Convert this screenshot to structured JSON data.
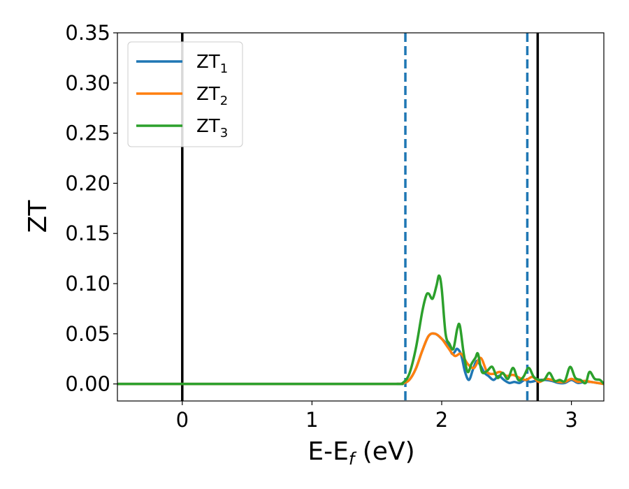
{
  "chart_data": {
    "type": "line",
    "xlabel_main": "E-E",
    "xlabel_sub": "f",
    "xlabel_unit": " (eV)",
    "ylabel": "ZT",
    "xlim": [
      -0.5,
      3.25
    ],
    "ylim": [
      -0.017,
      0.35
    ],
    "xticks": [
      0,
      1,
      2,
      3
    ],
    "yticks": [
      0.0,
      0.05,
      0.1,
      0.15,
      0.2,
      0.25,
      0.3,
      0.35
    ],
    "grid": false,
    "legend_position": "upper-left",
    "vlines_solid": [
      0.0,
      2.74
    ],
    "vlines_dashed": [
      1.72,
      2.66
    ],
    "series": [
      {
        "label_main": "ZT",
        "label_sub": "1",
        "color": "#1f77b4",
        "x": [
          -0.5,
          1.5,
          1.65,
          1.7,
          1.75,
          1.8,
          1.85,
          1.9,
          1.95,
          2.0,
          2.05,
          2.08,
          2.1,
          2.12,
          2.15,
          2.18,
          2.21,
          2.24,
          2.27,
          2.3,
          2.33,
          2.36,
          2.4,
          2.44,
          2.48,
          2.52,
          2.56,
          2.6,
          2.64,
          2.68,
          2.72,
          2.76,
          2.8,
          2.85,
          2.9,
          2.95,
          3.0,
          3.05,
          3.1,
          3.15,
          3.2,
          3.25
        ],
        "y": [
          0.0,
          0.0,
          0.0,
          0.0005,
          0.004,
          0.015,
          0.033,
          0.048,
          0.05,
          0.045,
          0.038,
          0.03,
          0.032,
          0.035,
          0.029,
          0.012,
          0.004,
          0.014,
          0.023,
          0.018,
          0.011,
          0.008,
          0.004,
          0.008,
          0.004,
          0.001,
          0.002,
          0.001,
          0.004,
          0.002,
          0.003,
          0.004,
          0.004,
          0.003,
          0.001,
          0.001,
          0.004,
          0.001,
          0.002,
          0.002,
          0.001,
          0.0
        ]
      },
      {
        "label_main": "ZT",
        "label_sub": "2",
        "color": "#ff7f0e",
        "x": [
          -0.5,
          1.5,
          1.65,
          1.7,
          1.75,
          1.8,
          1.85,
          1.9,
          1.95,
          2.0,
          2.05,
          2.1,
          2.15,
          2.2,
          2.25,
          2.3,
          2.35,
          2.4,
          2.45,
          2.5,
          2.55,
          2.6,
          2.65,
          2.7,
          2.75,
          2.8,
          2.85,
          2.9,
          2.95,
          3.0,
          3.05,
          3.1,
          3.15,
          3.2,
          3.25
        ],
        "y": [
          0.0,
          0.0,
          0.0,
          0.0005,
          0.004,
          0.015,
          0.033,
          0.048,
          0.05,
          0.045,
          0.036,
          0.028,
          0.03,
          0.02,
          0.016,
          0.026,
          0.012,
          0.01,
          0.012,
          0.008,
          0.009,
          0.006,
          0.004,
          0.007,
          0.002,
          0.005,
          0.004,
          0.002,
          0.002,
          0.005,
          0.002,
          0.003,
          0.002,
          0.001,
          0.0
        ]
      },
      {
        "label_main": "ZT",
        "label_sub": "3",
        "color": "#2ca02c",
        "x": [
          -0.5,
          1.5,
          1.65,
          1.7,
          1.75,
          1.8,
          1.85,
          1.88,
          1.9,
          1.93,
          1.96,
          1.98,
          2.0,
          2.03,
          2.06,
          2.09,
          2.12,
          2.14,
          2.17,
          2.2,
          2.23,
          2.26,
          2.28,
          2.31,
          2.35,
          2.39,
          2.43,
          2.47,
          2.51,
          2.55,
          2.59,
          2.63,
          2.67,
          2.71,
          2.75,
          2.79,
          2.83,
          2.87,
          2.91,
          2.95,
          2.99,
          3.03,
          3.07,
          3.11,
          3.14,
          3.18,
          3.22,
          3.25
        ],
        "y": [
          0.0,
          0.0,
          0.0,
          0.001,
          0.01,
          0.035,
          0.072,
          0.088,
          0.09,
          0.085,
          0.098,
          0.108,
          0.095,
          0.05,
          0.04,
          0.035,
          0.055,
          0.058,
          0.03,
          0.012,
          0.02,
          0.026,
          0.03,
          0.012,
          0.013,
          0.017,
          0.006,
          0.011,
          0.005,
          0.016,
          0.004,
          0.007,
          0.016,
          0.007,
          0.004,
          0.004,
          0.011,
          0.003,
          0.004,
          0.003,
          0.017,
          0.006,
          0.004,
          0.001,
          0.012,
          0.005,
          0.004,
          0.0
        ]
      }
    ]
  }
}
